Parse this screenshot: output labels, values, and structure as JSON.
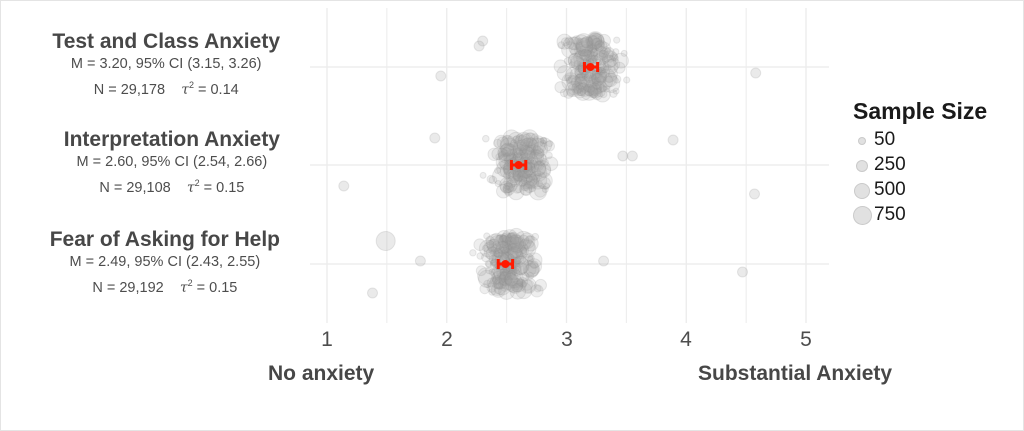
{
  "chart_data": {
    "type": "scatter",
    "title": "",
    "xlabel": "",
    "ylabel": "",
    "xlim": [
      0.98,
      5.2
    ],
    "x_ticks": [
      1,
      2,
      3,
      4,
      5
    ],
    "x_anchor_labels": {
      "low": "No anxiety",
      "high": "Substantial Anxiety"
    },
    "grid": true,
    "legend": {
      "title": "Sample Size",
      "position": "right",
      "entries": [
        {
          "label": "50",
          "size": 50
        },
        {
          "label": "250",
          "size": 250
        },
        {
          "label": "500",
          "size": 500
        },
        {
          "label": "750",
          "size": 750
        }
      ]
    },
    "series": [
      {
        "name": "Test and Class Anxiety",
        "mean": 3.2,
        "ci_low": 3.15,
        "ci_high": 3.26,
        "N": "29,178",
        "tau2": "0.14",
        "stat_line": "M = 3.20, 95% CI (3.15, 3.26)",
        "n_line": "N = 29,178",
        "tau_line": "= 0.14",
        "point_center": 3.2,
        "point_spread": 0.38,
        "point_count": 230,
        "outliers": [
          [
            4.58,
            6
          ],
          [
            2.3,
            -26
          ],
          [
            2.27,
            -21
          ],
          [
            1.95,
            9
          ]
        ]
      },
      {
        "name": "Interpretation Anxiety",
        "mean": 2.6,
        "ci_low": 2.54,
        "ci_high": 2.66,
        "N": "29,108",
        "tau2": "0.15",
        "stat_line": "M = 2.60, 95% CI (2.54, 2.66)",
        "n_line": "N = 29,108",
        "tau_line": "= 0.15",
        "point_center": 2.62,
        "point_spread": 0.4,
        "point_count": 230,
        "outliers": [
          [
            1.14,
            21
          ],
          [
            4.57,
            29
          ],
          [
            3.89,
            -25
          ],
          [
            1.9,
            -27
          ],
          [
            3.55,
            -9
          ],
          [
            3.47,
            -9
          ]
        ]
      },
      {
        "name": "Fear of Asking for Help",
        "mean": 2.49,
        "ci_low": 2.43,
        "ci_high": 2.55,
        "N": "29,192",
        "tau2": "0.15",
        "stat_line": "M = 2.49, 95% CI (2.43, 2.55)",
        "n_line": "N = 29,192",
        "tau_line": "= 0.15",
        "point_center": 2.5,
        "point_spread": 0.42,
        "point_count": 230,
        "outliers": [
          [
            1.49,
            -23
          ],
          [
            1.38,
            29
          ],
          [
            4.47,
            8
          ],
          [
            3.31,
            -3
          ],
          [
            1.78,
            -3
          ]
        ]
      }
    ]
  },
  "colors": {
    "point_fill": "#9e9e9e",
    "ci": "#ff1a00",
    "grid": "#ebebeb",
    "text": "#4d4d4d"
  }
}
